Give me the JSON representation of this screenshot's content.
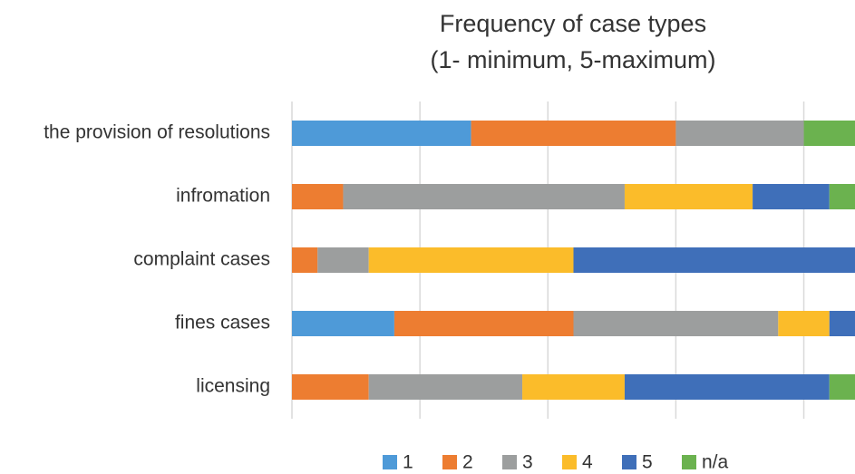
{
  "chart_data": {
    "type": "stacked_barh",
    "title": "Frequency of case types",
    "subtitle": "(1- minimum, 5-maximum)",
    "categories": [
      "the provision of resolutions",
      "infromation",
      "complaint cases",
      "fines cases",
      "licensing"
    ],
    "series": [
      {
        "name": "1",
        "color": "#4e9ad8",
        "values": [
          7,
          0,
          0,
          4,
          0
        ]
      },
      {
        "name": "2",
        "color": "#ed7d31",
        "values": [
          8,
          2,
          1,
          7,
          3
        ]
      },
      {
        "name": "3",
        "color": "#9c9e9e",
        "values": [
          5,
          11,
          2,
          8,
          6
        ]
      },
      {
        "name": "4",
        "color": "#fbbc2a",
        "values": [
          0,
          5,
          8,
          2,
          4
        ]
      },
      {
        "name": "5",
        "color": "#3f6fb9",
        "values": [
          0,
          3,
          11,
          1,
          8
        ]
      },
      {
        "name": "n/a",
        "color": "#6bb24f",
        "values": [
          2,
          1,
          0,
          0,
          1
        ]
      }
    ],
    "xlim": [
      0,
      22
    ],
    "xticks": [
      0,
      5,
      10,
      15,
      20
    ],
    "grid": true,
    "legend": "bottom"
  }
}
